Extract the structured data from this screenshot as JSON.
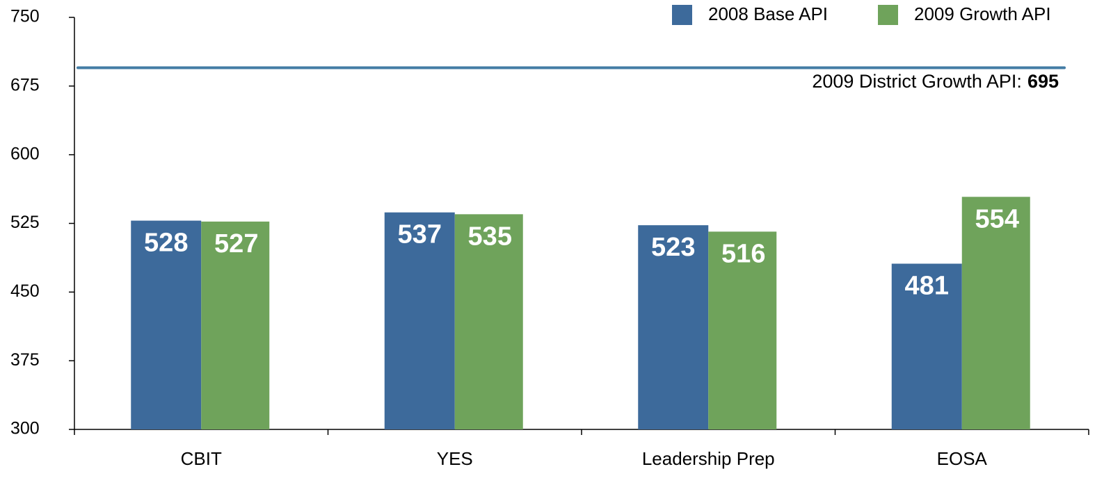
{
  "chart_data": {
    "type": "bar",
    "categories": [
      "CBIT",
      "YES",
      "Leadership Prep",
      "EOSA"
    ],
    "series": [
      {
        "name": "2008 Base API",
        "color": "#3d6a9b",
        "values": [
          528,
          537,
          523,
          481
        ]
      },
      {
        "name": "2009 Growth API",
        "color": "#6fa35b",
        "values": [
          527,
          535,
          516,
          554
        ]
      }
    ],
    "ylim": [
      300,
      750
    ],
    "yticks": [
      300,
      375,
      450,
      525,
      600,
      675,
      750
    ],
    "reference_line": {
      "label": "2009 District Growth API:",
      "value": 695,
      "color": "#2f6e9c"
    },
    "legend": "top-right"
  }
}
